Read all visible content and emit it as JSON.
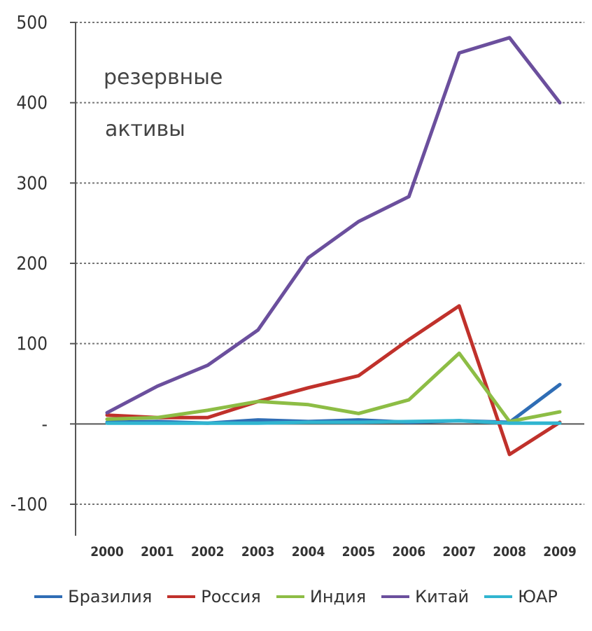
{
  "chart_data": {
    "type": "line",
    "annotation": [
      "резервные",
      "активы"
    ],
    "categories": [
      "2000",
      "2001",
      "2002",
      "2003",
      "2004",
      "2005",
      "2006",
      "2007",
      "2008",
      "2009"
    ],
    "y_ticks": [
      "500",
      "400",
      "300",
      "200",
      "100",
      "-",
      "-100"
    ],
    "ylim": [
      -100,
      500
    ],
    "grid": true,
    "legend_position": "bottom",
    "series": [
      {
        "name": "Бразилия",
        "color": "#2f6db5",
        "values": [
          2,
          3,
          1,
          5,
          3,
          5,
          2,
          4,
          2,
          49
        ]
      },
      {
        "name": "Россия",
        "color": "#c0312b",
        "values": [
          11,
          8,
          8,
          28,
          45,
          60,
          105,
          147,
          -38,
          2
        ]
      },
      {
        "name": "Индия",
        "color": "#8dbd45",
        "values": [
          6,
          8,
          17,
          28,
          24,
          13,
          30,
          88,
          3,
          15
        ]
      },
      {
        "name": "Китай",
        "color": "#6b4f9d",
        "values": [
          14,
          47,
          73,
          117,
          207,
          252,
          283,
          462,
          481,
          400
        ]
      },
      {
        "name": "ЮАР",
        "color": "#31b5d0",
        "values": [
          1,
          1,
          1,
          1,
          2,
          2,
          3,
          4,
          1,
          1
        ]
      }
    ]
  }
}
